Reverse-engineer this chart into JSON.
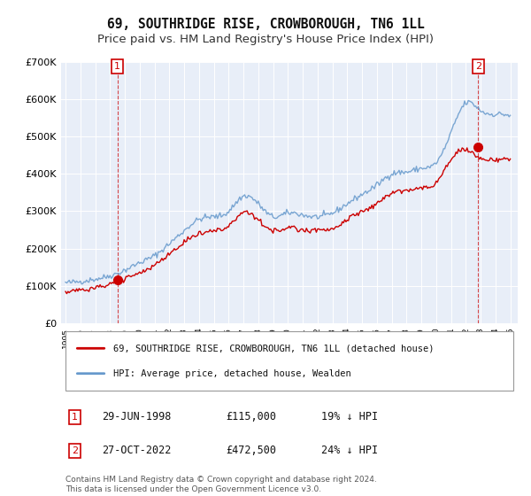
{
  "title": "69, SOUTHRIDGE RISE, CROWBOROUGH, TN6 1LL",
  "subtitle": "Price paid vs. HM Land Registry's House Price Index (HPI)",
  "title_fontsize": 10.5,
  "subtitle_fontsize": 9.5,
  "ylim": [
    0,
    700000
  ],
  "yticks": [
    0,
    100000,
    200000,
    300000,
    400000,
    500000,
    600000,
    700000
  ],
  "ytick_labels": [
    "£0",
    "£100K",
    "£200K",
    "£300K",
    "£400K",
    "£500K",
    "£600K",
    "£700K"
  ],
  "background_color": "#ffffff",
  "plot_bg_color": "#e8eef8",
  "grid_color": "#ffffff",
  "sale1_x": 1998.5,
  "sale1_price": 115000,
  "sale2_x": 2022.83,
  "sale2_price": 472500,
  "hpi_color": "#6699cc",
  "price_color": "#cc0000",
  "legend_label_price": "69, SOUTHRIDGE RISE, CROWBOROUGH, TN6 1LL (detached house)",
  "legend_label_hpi": "HPI: Average price, detached house, Wealden",
  "footnote": "Contains HM Land Registry data © Crown copyright and database right 2024.\nThis data is licensed under the Open Government Licence v3.0.",
  "table_rows": [
    [
      "1",
      "29-JUN-1998",
      "£115,000",
      "19% ↓ HPI"
    ],
    [
      "2",
      "27-OCT-2022",
      "£472,500",
      "24% ↓ HPI"
    ]
  ]
}
